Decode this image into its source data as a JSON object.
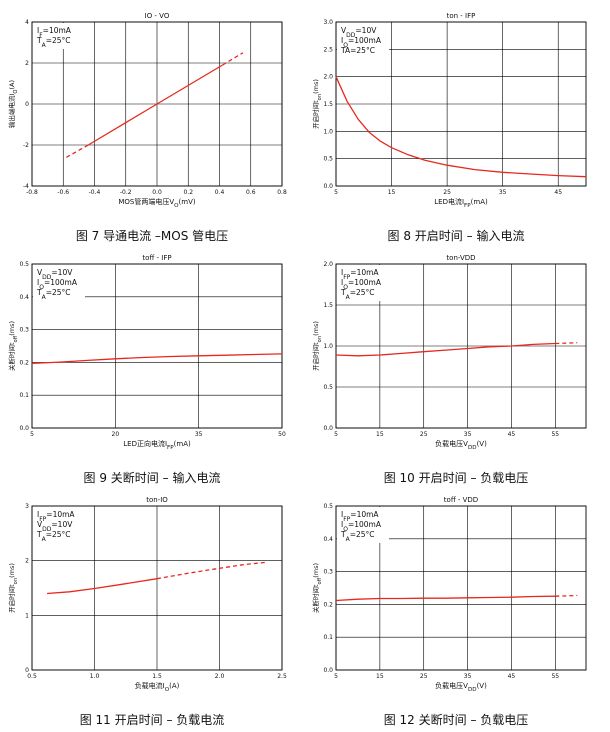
{
  "theme": {
    "curve_color": "#e8281e",
    "grid_color": "#000000"
  },
  "chart_data": [
    {
      "type": "line",
      "title": "I<sub>O</sub> - V<sub>O</sub>",
      "title_text": "IO - VO",
      "annotations": [
        "I_F=10mA",
        "T_A=25°C"
      ],
      "xlabel": "MOS管两端电压V_O(mV)",
      "ylabel": "输出端电流I_O(A)",
      "xlim": [
        -0.8,
        0.8
      ],
      "ylim": [
        -4,
        4
      ],
      "xticks": [
        -0.8,
        -0.6,
        -0.4,
        -0.2,
        0.0,
        0.2,
        0.4,
        0.6,
        0.8
      ],
      "xtick_labels": [
        "-0.8",
        "-0.6",
        "-0.4",
        "-0.2",
        "0.0",
        "0.2",
        "0.4",
        "0.6",
        "0.8"
      ],
      "yticks": [
        -4,
        -2,
        0,
        2,
        4
      ],
      "ytick_labels": [
        "-4",
        "-2",
        "0",
        "2",
        "4"
      ],
      "series": [
        {
          "style": "dashed",
          "x": [
            -0.58,
            -0.44
          ],
          "y": [
            -2.6,
            -2.0
          ]
        },
        {
          "style": "solid",
          "x": [
            -0.44,
            0.0,
            0.42
          ],
          "y": [
            -2.0,
            0.0,
            1.9
          ]
        },
        {
          "style": "dashed",
          "x": [
            0.42,
            0.55
          ],
          "y": [
            1.9,
            2.5
          ]
        }
      ],
      "caption": "图 7 导通电流 –MOS 管电压"
    },
    {
      "type": "line",
      "title_text": "ton - IFP",
      "annotations": [
        "V_DD=10V",
        "I_O=100mA",
        "TA=25°C"
      ],
      "xlabel": "LED电流I_FP(mA)",
      "ylabel": "开启时间t_on(ms)",
      "xlim": [
        5,
        50
      ],
      "ylim": [
        0,
        3.0
      ],
      "xticks": [
        5,
        15,
        25,
        35,
        45
      ],
      "xtick_labels": [
        "5",
        "15",
        "25",
        "35",
        "45"
      ],
      "yticks": [
        0,
        0.5,
        1.0,
        1.5,
        2.0,
        2.5,
        3.0
      ],
      "ytick_labels": [
        "0.0",
        "0.5",
        "1.0",
        "1.5",
        "2.0",
        "2.5",
        "3.0"
      ],
      "series": [
        {
          "style": "solid",
          "x": [
            5,
            7,
            9,
            11,
            13,
            15,
            18,
            21,
            25,
            30,
            35,
            40,
            45,
            50
          ],
          "y": [
            2.0,
            1.55,
            1.22,
            0.98,
            0.82,
            0.7,
            0.57,
            0.47,
            0.38,
            0.3,
            0.25,
            0.22,
            0.19,
            0.17
          ]
        }
      ],
      "caption": "图 8 开启时间 – 输入电流"
    },
    {
      "type": "line",
      "title_text": "toff - IFP",
      "annotations": [
        "V_DD=10V",
        "I_O=100mA",
        "T_A=25°C"
      ],
      "xlabel": "LED正向电流I_FP(mA)",
      "ylabel": "关断时间t_off(ms)",
      "xlim": [
        5,
        50
      ],
      "ylim": [
        0,
        0.5
      ],
      "xticks": [
        5,
        20,
        35,
        50
      ],
      "xtick_labels": [
        "5",
        "20",
        "35",
        "50"
      ],
      "yticks": [
        0,
        0.1,
        0.2,
        0.3,
        0.4,
        0.5
      ],
      "ytick_labels": [
        "0.0",
        "0.1",
        "0.2",
        "0.3",
        "0.4",
        "0.5"
      ],
      "series": [
        {
          "style": "solid",
          "x": [
            5,
            10,
            15,
            20,
            25,
            30,
            35,
            40,
            45,
            50
          ],
          "y": [
            0.197,
            0.201,
            0.206,
            0.211,
            0.215,
            0.218,
            0.22,
            0.222,
            0.224,
            0.226
          ]
        }
      ],
      "caption": "图 9 关断时间 – 输入电流"
    },
    {
      "type": "line",
      "title_text": "ton-VDD",
      "annotations": [
        "I_FP=10mA",
        "I_O=100mA",
        "T_A=25°C"
      ],
      "xlabel": "负载电压V_DD(V)",
      "ylabel": "开启时间t_on(ms)",
      "xlim": [
        5,
        62
      ],
      "ylim": [
        0,
        2.0
      ],
      "xticks": [
        5,
        15,
        25,
        35,
        45,
        55
      ],
      "xtick_labels": [
        "5",
        "15",
        "25",
        "35",
        "45",
        "55"
      ],
      "yticks": [
        0,
        0.5,
        1.0,
        1.5,
        2.0
      ],
      "ytick_labels": [
        "0.0",
        "0.5",
        "1.0",
        "1.5",
        "2.0"
      ],
      "series": [
        {
          "style": "solid",
          "x": [
            5,
            10,
            15,
            20,
            25,
            30,
            35,
            40,
            45,
            50,
            55
          ],
          "y": [
            0.89,
            0.88,
            0.89,
            0.91,
            0.93,
            0.95,
            0.97,
            0.99,
            1.0,
            1.02,
            1.03
          ]
        },
        {
          "style": "dashed",
          "x": [
            55,
            60
          ],
          "y": [
            1.03,
            1.04
          ]
        }
      ],
      "caption": "图 10 开启时间 – 负载电压"
    },
    {
      "type": "line",
      "title_text": "ton-IO",
      "annotations": [
        "I_FP=10mA",
        "V_DD=10V",
        "T_A=25°C"
      ],
      "xlabel": "负载电流I_O(A)",
      "ylabel": "开启时间t_on(ms)",
      "xlim": [
        0.5,
        2.5
      ],
      "ylim": [
        0,
        3
      ],
      "xticks": [
        0.5,
        1.0,
        1.5,
        2.0,
        2.5
      ],
      "xtick_labels": [
        "0.5",
        "1.0",
        "1.5",
        "2.0",
        "2.5"
      ],
      "yticks": [
        0,
        1,
        2,
        3
      ],
      "ytick_labels": [
        "0",
        "1",
        "2",
        "3"
      ],
      "series": [
        {
          "style": "solid",
          "x": [
            0.62,
            0.8,
            1.0,
            1.2,
            1.5
          ],
          "y": [
            1.4,
            1.43,
            1.49,
            1.56,
            1.67
          ]
        },
        {
          "style": "dashed",
          "x": [
            1.5,
            1.75,
            2.0,
            2.2,
            2.38
          ],
          "y": [
            1.67,
            1.77,
            1.86,
            1.93,
            1.97
          ]
        }
      ],
      "caption": "图 11 开启时间 – 负载电流"
    },
    {
      "type": "line",
      "title_text": "toff - VDD",
      "annotations": [
        "I_FP=10mA",
        "I_O=100mA",
        "T_A=25°C"
      ],
      "xlabel": "负载电压V_DD(V)",
      "ylabel": "关断时间t_off(ms)",
      "xlim": [
        5,
        62
      ],
      "ylim": [
        0,
        0.5
      ],
      "xticks": [
        5,
        15,
        25,
        35,
        45,
        55
      ],
      "xtick_labels": [
        "5",
        "15",
        "25",
        "35",
        "45",
        "55"
      ],
      "yticks": [
        0,
        0.1,
        0.2,
        0.3,
        0.4,
        0.5
      ],
      "ytick_labels": [
        "0.0",
        "0.1",
        "0.2",
        "0.3",
        "0.4",
        "0.5"
      ],
      "series": [
        {
          "style": "solid",
          "x": [
            5,
            10,
            15,
            20,
            25,
            30,
            35,
            40,
            45,
            50,
            55
          ],
          "y": [
            0.212,
            0.216,
            0.218,
            0.218,
            0.219,
            0.219,
            0.22,
            0.221,
            0.222,
            0.224,
            0.225
          ]
        },
        {
          "style": "dashed",
          "x": [
            55,
            60
          ],
          "y": [
            0.225,
            0.227
          ]
        }
      ],
      "caption": "图 12 关断时间 – 负载电压"
    }
  ]
}
